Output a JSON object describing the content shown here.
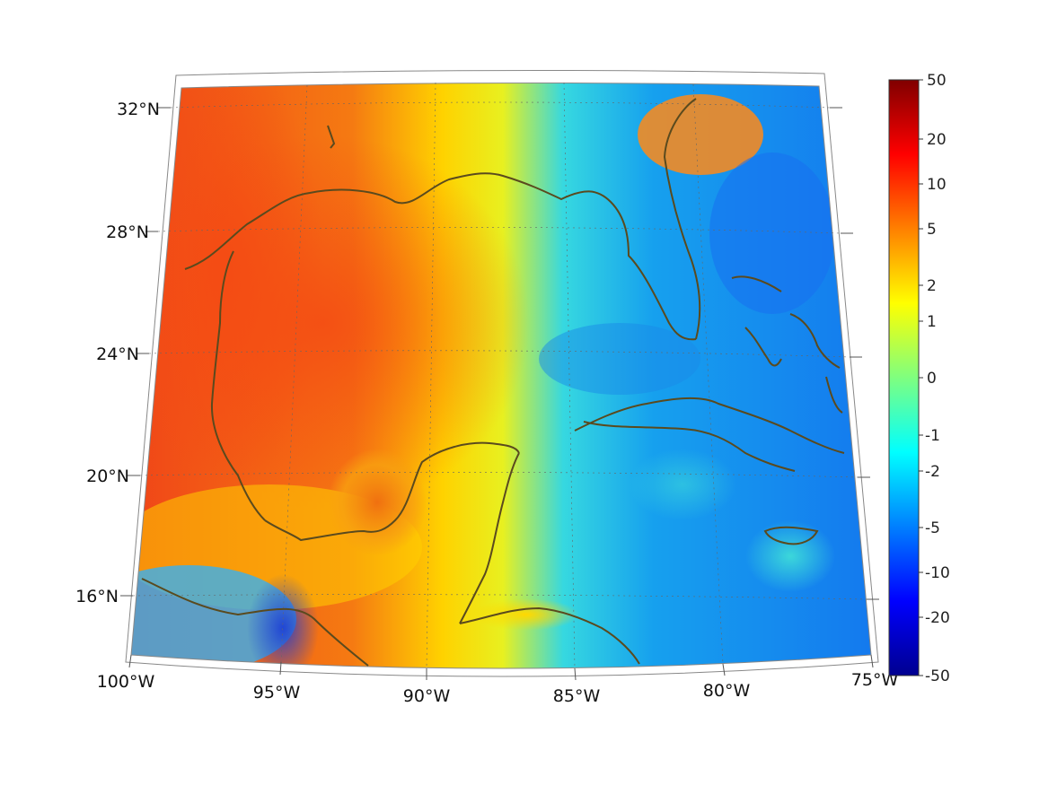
{
  "map": {
    "projection": "conic",
    "longitude_labels": [
      "100°W",
      "95°W",
      "90°W",
      "85°W",
      "80°W",
      "75°W"
    ],
    "latitude_labels": [
      "32°N",
      "28°N",
      "24°N",
      "20°N",
      "16°N"
    ],
    "longitudes": [
      -100,
      -95,
      -90,
      -85,
      -80,
      -75
    ],
    "latitudes": [
      32,
      28,
      24,
      20,
      16
    ],
    "coastline_color": "#5a4a1e",
    "grid": "dotted"
  },
  "colorbar": {
    "ticks": [
      "50",
      "20",
      "10",
      "5",
      "2",
      "1",
      "0",
      "-1",
      "-2",
      "-5",
      "-10",
      "-20",
      "-50"
    ],
    "colormap": "jet",
    "scale": "symmetric log"
  }
}
